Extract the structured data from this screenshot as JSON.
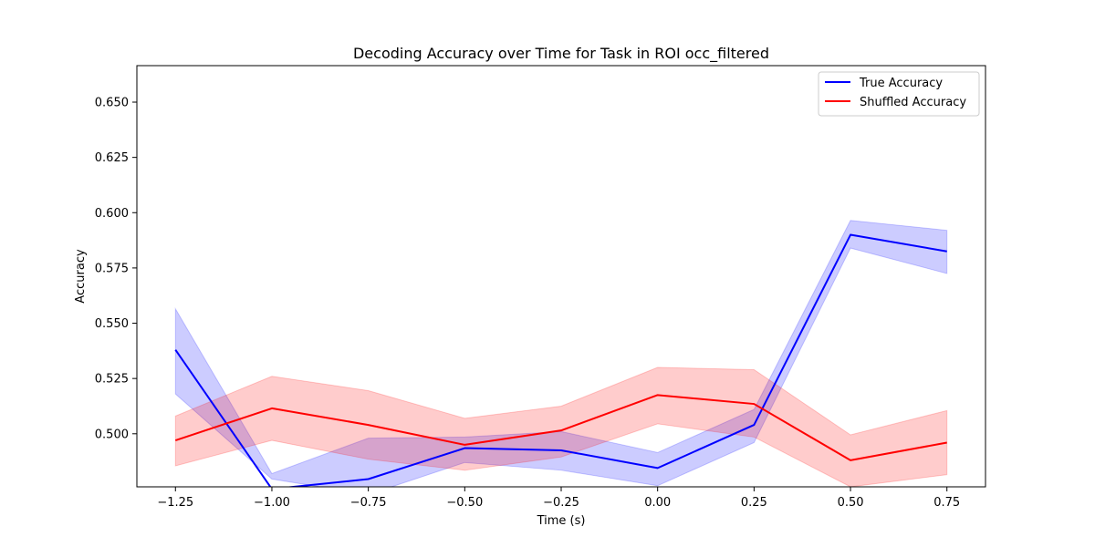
{
  "chart_data": {
    "type": "line",
    "title": "Decoding Accuracy over Time for Task in ROI occ_filtered",
    "xlabel": "Time (s)",
    "ylabel": "Accuracy",
    "x": [
      -1.25,
      -1.0,
      -0.75,
      -0.5,
      -0.25,
      0.0,
      0.25,
      0.5,
      0.75
    ],
    "xlim": [
      -1.35,
      0.85
    ],
    "ylim": [
      0.476,
      0.6665
    ],
    "xticks": [
      -1.25,
      -1.0,
      -0.75,
      -0.5,
      -0.25,
      0.0,
      0.25,
      0.5,
      0.75
    ],
    "xtick_labels": [
      "−1.25",
      "−1.00",
      "−0.75",
      "−0.50",
      "−0.25",
      "0.00",
      "0.25",
      "0.50",
      "0.75"
    ],
    "yticks": [
      0.5,
      0.525,
      0.55,
      0.575,
      0.6,
      0.625,
      0.65
    ],
    "ytick_labels": [
      "0.500",
      "0.525",
      "0.550",
      "0.575",
      "0.600",
      "0.625",
      "0.650"
    ],
    "grid": false,
    "legend_position": "top-right",
    "series": [
      {
        "name": "True Accuracy",
        "color": "#0000ff",
        "values": [
          0.538,
          0.475,
          0.4795,
          0.4935,
          0.4925,
          0.4845,
          0.504,
          0.59,
          0.5825
        ],
        "lower": [
          0.518,
          0.4795,
          0.4725,
          0.487,
          0.4835,
          0.4765,
          0.496,
          0.584,
          0.5725
        ],
        "upper": [
          0.5565,
          0.482,
          0.498,
          0.4985,
          0.501,
          0.4915,
          0.511,
          0.5965,
          0.592
        ]
      },
      {
        "name": "Shuffled Accuracy",
        "color": "#ff0000",
        "values": [
          0.497,
          0.5115,
          0.504,
          0.495,
          0.5015,
          0.5175,
          0.5135,
          0.488,
          0.496
        ],
        "lower": [
          0.4855,
          0.497,
          0.4885,
          0.4835,
          0.4895,
          0.5045,
          0.4985,
          0.476,
          0.4815
        ],
        "upper": [
          0.508,
          0.526,
          0.5195,
          0.507,
          0.5125,
          0.53,
          0.529,
          0.4995,
          0.5105
        ]
      }
    ]
  }
}
